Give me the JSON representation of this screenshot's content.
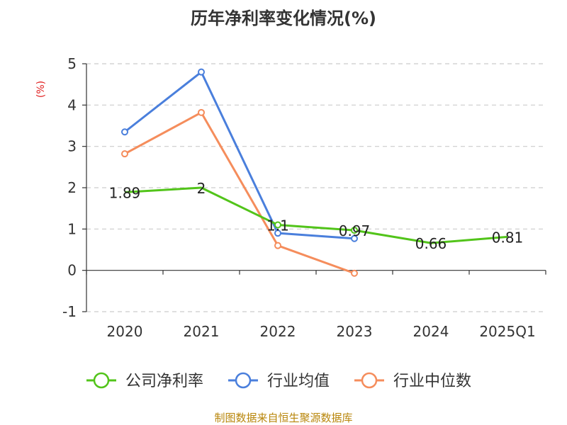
{
  "chart_data": {
    "type": "line",
    "title": "历年净利率变化情况(%)",
    "ylabel": "(%)",
    "xlabel": "",
    "ylim": [
      -1,
      5
    ],
    "yticks": [
      "5",
      "4",
      "3",
      "2",
      "1",
      "0",
      "-1"
    ],
    "categories": [
      "2020",
      "2021",
      "2022",
      "2023",
      "2024",
      "2025Q1"
    ],
    "series": [
      {
        "name": "公司净利率",
        "color": "#52c41a",
        "values": [
          1.89,
          2.0,
          1.1,
          0.97,
          0.66,
          0.81
        ],
        "labels": [
          "1.89",
          "2",
          "1.1",
          "0.97",
          "0.66",
          "0.81"
        ],
        "markers": [
          false,
          false,
          true,
          true,
          false,
          false
        ]
      },
      {
        "name": "行业均值",
        "color": "#4a7fdc",
        "values": [
          3.35,
          4.8,
          0.9,
          0.77,
          null,
          null
        ]
      },
      {
        "name": "行业中位数",
        "color": "#f58d5c",
        "values": [
          2.82,
          3.82,
          0.6,
          -0.07,
          null,
          null
        ]
      }
    ],
    "grid": true,
    "legend_position": "bottom",
    "source": "制图数据来自恒生聚源数据库"
  }
}
